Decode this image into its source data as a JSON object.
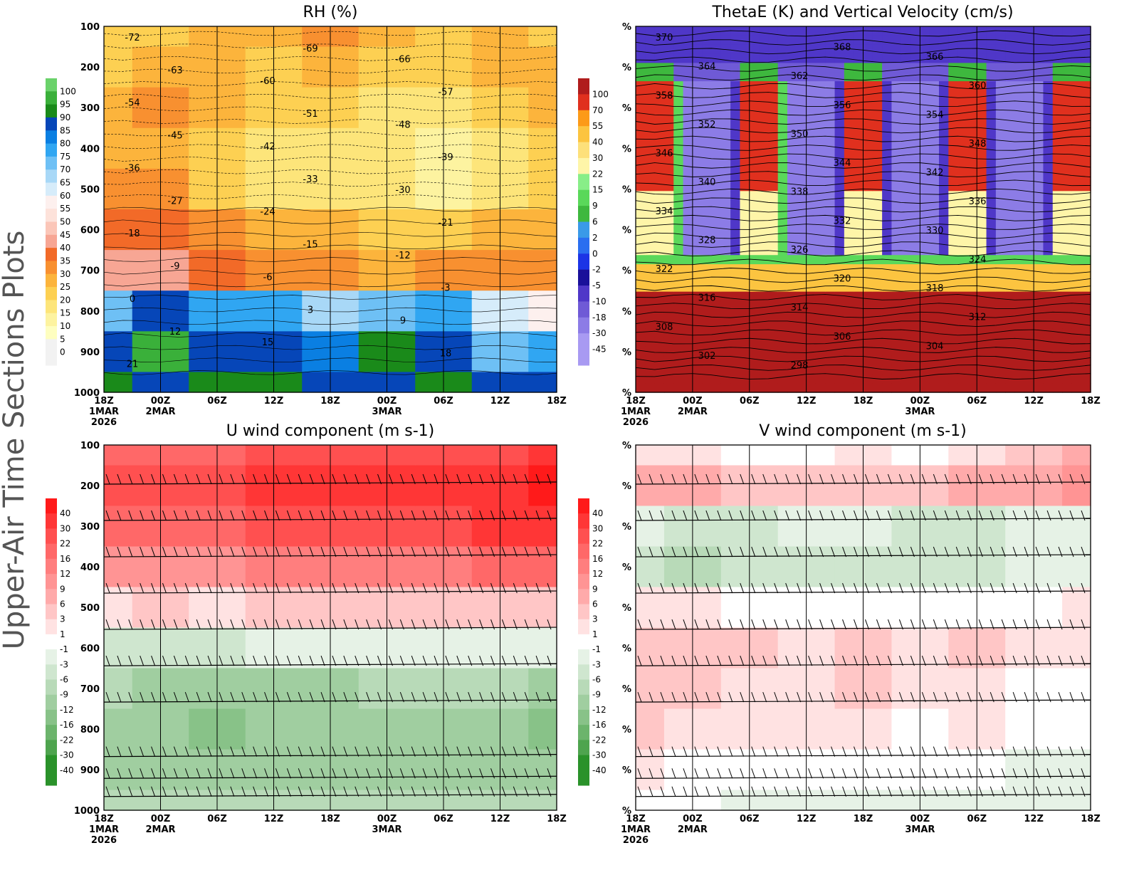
{
  "figure_title": "Upper-Air Time Sections Plots",
  "panels": [
    {
      "id": "rh",
      "title": "RH (%)",
      "y_tick_labels": [
        "100",
        "200",
        "300",
        "400",
        "500",
        "600",
        "700",
        "800",
        "900",
        "1000"
      ],
      "x_tick_labels": [
        "18Z",
        "00Z",
        "06Z",
        "12Z",
        "18Z",
        "00Z",
        "06Z",
        "12Z",
        "18Z"
      ],
      "x_sub_labels": [
        "1MAR",
        "2MAR",
        "",
        "",
        "",
        "3MAR",
        "",
        "",
        ""
      ],
      "x_year_label": "2026",
      "colorbar_labels": [
        "100",
        "95",
        "90",
        "85",
        "80",
        "75",
        "70",
        "65",
        "60",
        "55",
        "50",
        "45",
        "40",
        "35",
        "30",
        "25",
        "20",
        "15",
        "10",
        "5",
        "0"
      ],
      "contour_labels": [
        "-72",
        "-69",
        "-66",
        "-63",
        "-60",
        "-57",
        "-54",
        "-51",
        "-48",
        "-45",
        "-42",
        "-39",
        "-36",
        "-33",
        "-30",
        "-27",
        "-24",
        "-21",
        "-18",
        "-15",
        "-12",
        "-9",
        "-6",
        "-3",
        "0",
        "3",
        "9",
        "12",
        "15",
        "18",
        "21"
      ]
    },
    {
      "id": "thetae",
      "title": "ThetaE (K) and Vertical Velocity (cm/s)",
      "y_tick_labels": [
        "%",
        "%",
        "%",
        "%",
        "%",
        "%",
        "%",
        "%",
        "%",
        "%"
      ],
      "x_tick_labels": [
        "18Z",
        "00Z",
        "06Z",
        "12Z",
        "18Z",
        "00Z",
        "06Z",
        "12Z",
        "18Z"
      ],
      "x_sub_labels": [
        "1MAR",
        "2MAR",
        "",
        "",
        "",
        "3MAR",
        "",
        "",
        ""
      ],
      "x_year_label": "2026",
      "colorbar_labels": [
        "100",
        "70",
        "55",
        "40",
        "30",
        "22",
        "15",
        "9",
        "6",
        "2",
        "0",
        "-2",
        "-5",
        "-10",
        "-18",
        "-30",
        "-45"
      ],
      "contour_labels": [
        "370",
        "368",
        "366",
        "364",
        "362",
        "360",
        "358",
        "356",
        "354",
        "352",
        "350",
        "348",
        "346",
        "344",
        "342",
        "340",
        "338",
        "336",
        "334",
        "332",
        "330",
        "328",
        "326",
        "324",
        "322",
        "320",
        "318",
        "316",
        "314",
        "312",
        "308",
        "306",
        "304",
        "302",
        "298"
      ]
    },
    {
      "id": "u",
      "title": "U wind component (m s-1)",
      "y_tick_labels": [
        "100",
        "200",
        "300",
        "400",
        "500",
        "600",
        "700",
        "800",
        "900",
        "1000"
      ],
      "x_tick_labels": [
        "18Z",
        "00Z",
        "06Z",
        "12Z",
        "18Z",
        "00Z",
        "06Z",
        "12Z",
        "18Z"
      ],
      "x_sub_labels": [
        "1MAR",
        "2MAR",
        "",
        "",
        "",
        "3MAR",
        "",
        "",
        ""
      ],
      "x_year_label": "2026",
      "colorbar_labels": [
        "40",
        "30",
        "22",
        "16",
        "12",
        "9",
        "6",
        "3",
        "1",
        "-1",
        "-3",
        "-6",
        "-9",
        "-12",
        "-16",
        "-22",
        "-30",
        "-40"
      ]
    },
    {
      "id": "v",
      "title": "V wind component (m s-1)",
      "y_tick_labels": [
        "%",
        "%",
        "%",
        "%",
        "%",
        "%",
        "%",
        "%",
        "%",
        "%"
      ],
      "x_tick_labels": [
        "18Z",
        "00Z",
        "06Z",
        "12Z",
        "18Z",
        "00Z",
        "06Z",
        "12Z",
        "18Z"
      ],
      "x_sub_labels": [
        "1MAR",
        "2MAR",
        "",
        "",
        "",
        "3MAR",
        "",
        "",
        ""
      ],
      "x_year_label": "2026",
      "colorbar_labels": [
        "40",
        "30",
        "22",
        "16",
        "12",
        "9",
        "6",
        "3",
        "1",
        "-1",
        "-3",
        "-6",
        "-9",
        "-12",
        "-16",
        "-22",
        "-30",
        "-40"
      ]
    }
  ],
  "chart_data": [
    {
      "type": "heatmap",
      "title": "RH (%)",
      "x": [
        "18Z 1MAR 2026",
        "00Z 2MAR",
        "06Z",
        "12Z",
        "18Z",
        "00Z 3MAR",
        "06Z",
        "12Z",
        "18Z"
      ],
      "y": [
        100,
        200,
        300,
        400,
        500,
        600,
        700,
        800,
        900,
        1000
      ],
      "ylim": [
        1000,
        100
      ],
      "color_levels": [
        0,
        5,
        10,
        15,
        20,
        25,
        30,
        35,
        40,
        45,
        50,
        55,
        60,
        65,
        70,
        75,
        80,
        85,
        90,
        95,
        100
      ],
      "level_colors": [
        "#f2f2f2",
        "#fefec0",
        "#fdf3a0",
        "#fde57a",
        "#fdd052",
        "#fcb43c",
        "#f89030",
        "#f26a28",
        "#f7a694",
        "#fbc6b8",
        "#fde2da",
        "#fdf0ee",
        "#d6ecfa",
        "#a8d8f7",
        "#6ec0f5",
        "#30a6f2",
        "#0a7fe2",
        "#0646b8",
        "#1a8a1a",
        "#3ab03a",
        "#6ad26a"
      ],
      "values_by_time": [
        [
          20,
          20,
          25,
          25,
          30,
          35,
          40,
          70,
          85,
          90
        ],
        [
          20,
          25,
          30,
          25,
          30,
          35,
          40,
          85,
          95,
          85
        ],
        [
          25,
          25,
          25,
          20,
          20,
          30,
          35,
          75,
          85,
          90
        ],
        [
          25,
          20,
          20,
          15,
          15,
          25,
          30,
          75,
          85,
          90
        ],
        [
          30,
          25,
          20,
          15,
          15,
          25,
          30,
          65,
          80,
          85
        ],
        [
          25,
          20,
          15,
          15,
          15,
          20,
          25,
          70,
          90,
          85
        ],
        [
          20,
          20,
          15,
          10,
          10,
          20,
          30,
          75,
          85,
          90
        ],
        [
          25,
          25,
          20,
          15,
          15,
          25,
          30,
          60,
          70,
          85
        ],
        [
          20,
          25,
          25,
          20,
          20,
          25,
          30,
          55,
          75,
          85
        ]
      ],
      "temperature_contours_C": [
        -72,
        -69,
        -66,
        -63,
        -60,
        -57,
        -54,
        -51,
        -48,
        -45,
        -42,
        -39,
        -36,
        -33,
        -30,
        -27,
        -24,
        -21,
        -18,
        -15,
        -12,
        -9,
        -6,
        -3,
        0,
        3,
        9,
        12,
        15,
        18,
        21
      ]
    },
    {
      "type": "heatmap",
      "title": "ThetaE (K) and Vertical Velocity (cm/s)",
      "x": [
        "18Z 1MAR 2026",
        "00Z 2MAR",
        "06Z",
        "12Z",
        "18Z",
        "00Z 3MAR",
        "06Z",
        "12Z",
        "18Z"
      ],
      "ylim": [
        1000,
        100
      ],
      "color_levels": [
        -45,
        -30,
        -18,
        -10,
        -5,
        -2,
        0,
        2,
        6,
        9,
        15,
        22,
        30,
        40,
        55,
        70,
        100
      ],
      "level_colors": [
        "#a89af2",
        "#8c7ce6",
        "#6f5ad6",
        "#4f37c8",
        "#1a109a",
        "#1c34e6",
        "#2a6ef0",
        "#3a9ae8",
        "#3eb83e",
        "#5ad85a",
        "#88ee88",
        "#fef5a8",
        "#fde07a",
        "#fcc440",
        "#fc9a18",
        "#e0301e",
        "#b01c1c"
      ],
      "thetae_contours_K": [
        370,
        368,
        366,
        364,
        362,
        360,
        358,
        356,
        354,
        352,
        350,
        348,
        346,
        344,
        342,
        340,
        338,
        336,
        334,
        332,
        330,
        328,
        326,
        324,
        322,
        320,
        318,
        316,
        314,
        312,
        308,
        306,
        304,
        302,
        298
      ]
    },
    {
      "type": "heatmap",
      "title": "U wind component (m s-1)",
      "x": [
        "18Z 1MAR 2026",
        "00Z 2MAR",
        "06Z",
        "12Z",
        "18Z",
        "00Z 3MAR",
        "06Z",
        "12Z",
        "18Z"
      ],
      "y": [
        100,
        200,
        300,
        400,
        500,
        600,
        700,
        800,
        900,
        1000
      ],
      "ylim": [
        1000,
        100
      ],
      "color_levels": [
        40,
        30,
        22,
        16,
        12,
        9,
        6,
        3,
        1,
        -1,
        -3,
        -6,
        -9,
        -12,
        -16,
        -22,
        -30,
        -40
      ],
      "level_colors": [
        "#ff1a1a",
        "#ff3636",
        "#ff5050",
        "#ff6868",
        "#ff7e7e",
        "#ff9494",
        "#ffaaaa",
        "#ffc6c6",
        "#ffe2e2",
        "#ffffff",
        "#e6f2e6",
        "#cfe6cf",
        "#b8dab8",
        "#a0cea0",
        "#88c288",
        "#6cb46c",
        "#4ea44e",
        "#2a922a"
      ],
      "values_by_time": [
        [
          16,
          22,
          16,
          9,
          1,
          -6,
          -9,
          -12,
          -12,
          -9
        ],
        [
          16,
          22,
          16,
          9,
          3,
          -6,
          -12,
          -12,
          -12,
          -9
        ],
        [
          16,
          22,
          16,
          9,
          1,
          -6,
          -12,
          -16,
          -12,
          -9
        ],
        [
          22,
          30,
          22,
          12,
          3,
          -3,
          -12,
          -12,
          -12,
          -9
        ],
        [
          22,
          30,
          22,
          12,
          3,
          -3,
          -12,
          -12,
          -12,
          -9
        ],
        [
          22,
          30,
          22,
          12,
          3,
          -3,
          -9,
          -12,
          -12,
          -9
        ],
        [
          22,
          30,
          22,
          12,
          3,
          -3,
          -9,
          -12,
          -12,
          -9
        ],
        [
          22,
          30,
          30,
          16,
          3,
          -3,
          -9,
          -12,
          -12,
          -9
        ],
        [
          30,
          40,
          30,
          16,
          3,
          -3,
          -12,
          -16,
          -12,
          -9
        ]
      ]
    },
    {
      "type": "heatmap",
      "title": "V wind component (m s-1)",
      "x": [
        "18Z 1MAR 2026",
        "00Z 2MAR",
        "06Z",
        "12Z",
        "18Z",
        "00Z 3MAR",
        "06Z",
        "12Z",
        "18Z"
      ],
      "ylim": [
        1000,
        100
      ],
      "color_levels": [
        40,
        30,
        22,
        16,
        12,
        9,
        6,
        3,
        1,
        -1,
        -3,
        -6,
        -9,
        -12,
        -16,
        -22,
        -30,
        -40
      ],
      "level_colors": [
        "#ff1a1a",
        "#ff3636",
        "#ff5050",
        "#ff6868",
        "#ff7e7e",
        "#ff9494",
        "#ffaaaa",
        "#ffc6c6",
        "#ffe2e2",
        "#ffffff",
        "#e6f2e6",
        "#cfe6cf",
        "#b8dab8",
        "#a0cea0",
        "#88c288",
        "#6cb46c",
        "#4ea44e",
        "#2a922a"
      ],
      "values_by_time": [
        [
          1,
          6,
          -3,
          -6,
          1,
          3,
          3,
          3,
          1,
          -1
        ],
        [
          1,
          6,
          -6,
          -9,
          1,
          3,
          3,
          1,
          -1,
          -1
        ],
        [
          -1,
          3,
          -6,
          -6,
          -1,
          3,
          1,
          1,
          -1,
          -3
        ],
        [
          -1,
          3,
          -3,
          -6,
          -1,
          1,
          1,
          1,
          -1,
          -3
        ],
        [
          1,
          3,
          -3,
          -6,
          -1,
          3,
          3,
          1,
          -1,
          -3
        ],
        [
          -1,
          3,
          -6,
          -6,
          -1,
          1,
          1,
          -1,
          -1,
          -3
        ],
        [
          1,
          6,
          -6,
          -6,
          -1,
          3,
          1,
          1,
          -1,
          -3
        ],
        [
          3,
          6,
          -3,
          -3,
          -1,
          1,
          -1,
          -1,
          -3,
          -3
        ],
        [
          6,
          9,
          -3,
          -3,
          1,
          1,
          -1,
          -1,
          -3,
          -3
        ]
      ]
    }
  ]
}
